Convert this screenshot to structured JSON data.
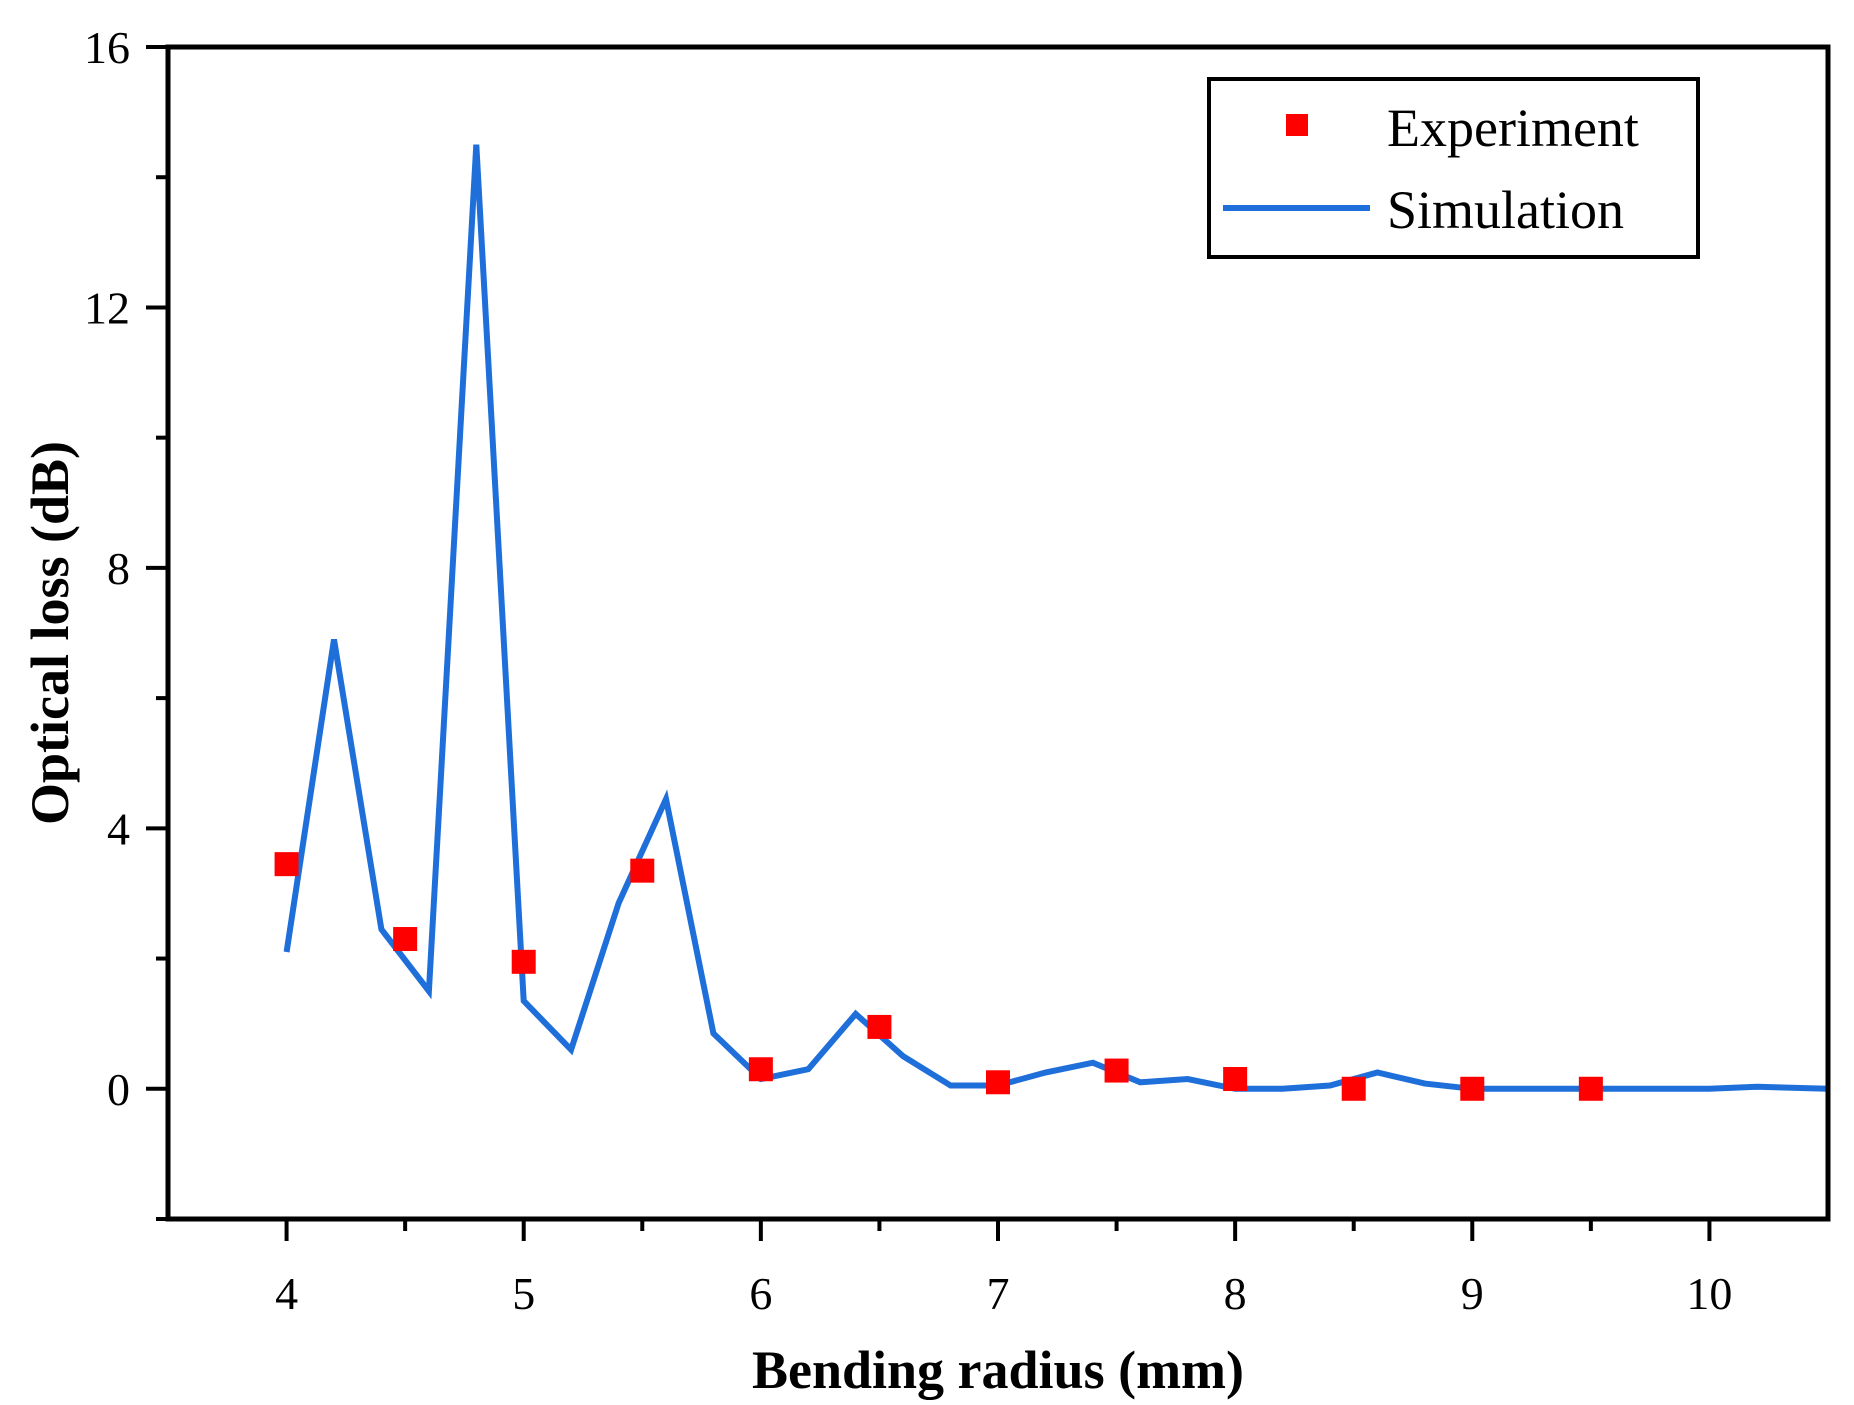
{
  "chart_data": {
    "type": "line+scatter",
    "title": "",
    "xlabel": "Bending radius (mm)",
    "ylabel": "Optical loss (dB)",
    "xlim": [
      3.5,
      10.5
    ],
    "ylim": [
      -2,
      16
    ],
    "x_ticks": [
      4,
      5,
      6,
      7,
      8,
      9,
      10
    ],
    "y_ticks": [
      0,
      4,
      8,
      12,
      16
    ],
    "x_tick_labels": [
      "4",
      "5",
      "6",
      "7",
      "8",
      "9",
      "10"
    ],
    "y_tick_labels": [
      "0",
      "4",
      "8",
      "12",
      "16"
    ],
    "x_minor_ticks": [
      4.5,
      5.5,
      6.5,
      7.5,
      8.5,
      9.5
    ],
    "y_minor_ticks": [
      -2,
      2,
      6,
      10,
      14
    ],
    "legend_position": "top-right",
    "grid": false,
    "series": [
      {
        "name": "Experiment",
        "kind": "scatter",
        "marker": "square",
        "color": "#ff0000",
        "x": [
          4.0,
          4.5,
          5.0,
          5.5,
          6.0,
          6.5,
          7.0,
          7.5,
          8.0,
          8.5,
          9.0,
          9.5
        ],
        "y": [
          3.45,
          2.3,
          1.95,
          3.35,
          0.3,
          0.95,
          0.1,
          0.28,
          0.15,
          0.0,
          0.0,
          0.0
        ]
      },
      {
        "name": "Simulation",
        "kind": "line",
        "color": "#1f6fdb",
        "x": [
          4.0,
          4.2,
          4.4,
          4.6,
          4.8,
          5.0,
          5.2,
          5.4,
          5.6,
          5.8,
          6.0,
          6.2,
          6.4,
          6.6,
          6.8,
          7.0,
          7.2,
          7.4,
          7.6,
          7.8,
          8.0,
          8.2,
          8.4,
          8.6,
          8.8,
          9.0,
          9.2,
          9.4,
          9.6,
          9.8,
          10.0,
          10.2,
          10.5
        ],
        "y": [
          2.1,
          6.9,
          2.45,
          1.5,
          14.5,
          1.35,
          0.6,
          2.85,
          4.45,
          0.85,
          0.15,
          0.3,
          1.15,
          0.5,
          0.05,
          0.05,
          0.25,
          0.4,
          0.1,
          0.15,
          0.0,
          0.0,
          0.05,
          0.25,
          0.08,
          0.0,
          0.0,
          0.0,
          0.0,
          0.0,
          0.0,
          0.03,
          0.0
        ]
      }
    ]
  }
}
